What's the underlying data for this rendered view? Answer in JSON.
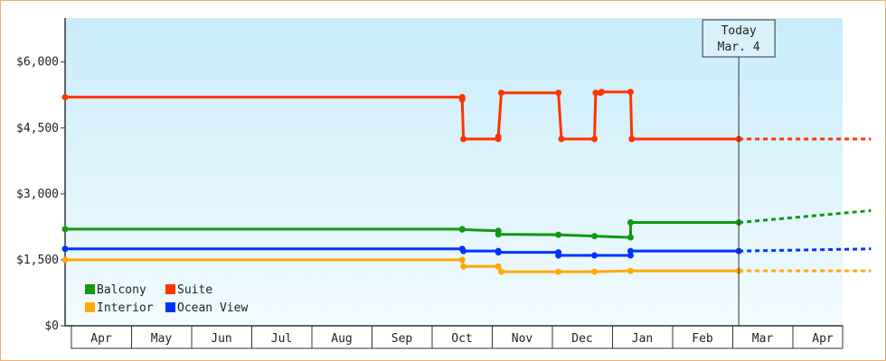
{
  "chart_data": {
    "type": "line",
    "title": "",
    "xlabel": "",
    "ylabel": "",
    "y_ticks": [
      "$0",
      "$1,500",
      "$3,000",
      "$4,500",
      "$6,000"
    ],
    "y_tick_values": [
      0,
      1500,
      3000,
      4500,
      6000
    ],
    "ylim": [
      0,
      7000
    ],
    "x_month_labels": [
      "Apr",
      "May",
      "Jun",
      "Jul",
      "Aug",
      "Sep",
      "Oct",
      "Nov",
      "Dec",
      "Jan",
      "Feb",
      "Mar",
      "Apr"
    ],
    "x_range_months": [
      0,
      13.3
    ],
    "today": {
      "label_line1": "Today",
      "label_line2": "Mar. 4",
      "x": 11.1
    },
    "legend": {
      "position": "bottom-left"
    },
    "series": [
      {
        "name": "Balcony",
        "color": "#119911",
        "points": [
          [
            -0.1,
            2200
          ],
          [
            6.5,
            2200
          ],
          [
            6.5,
            2190
          ],
          [
            7.1,
            2160
          ],
          [
            7.1,
            2080
          ],
          [
            8.1,
            2070
          ],
          [
            8.7,
            2040
          ],
          [
            9.3,
            2010
          ],
          [
            9.3,
            2350
          ],
          [
            11.1,
            2350
          ]
        ],
        "forecast": [
          [
            11.1,
            2350
          ],
          [
            13.3,
            2620
          ]
        ]
      },
      {
        "name": "Suite",
        "color": "#ff3300",
        "points": [
          [
            -0.1,
            5200
          ],
          [
            6.5,
            5200
          ],
          [
            6.5,
            5150
          ],
          [
            6.52,
            4250
          ],
          [
            7.1,
            4250
          ],
          [
            7.1,
            4300
          ],
          [
            7.15,
            5300
          ],
          [
            8.1,
            5300
          ],
          [
            8.15,
            4250
          ],
          [
            8.7,
            4250
          ],
          [
            8.72,
            5300
          ],
          [
            8.8,
            5300
          ],
          [
            8.82,
            5320
          ],
          [
            9.3,
            5320
          ],
          [
            9.32,
            4250
          ],
          [
            11.1,
            4250
          ]
        ],
        "forecast": [
          [
            11.1,
            4250
          ],
          [
            13.3,
            4250
          ]
        ]
      },
      {
        "name": "Interior",
        "color": "#ffaa00",
        "points": [
          [
            -0.1,
            1500
          ],
          [
            6.5,
            1500
          ],
          [
            6.52,
            1350
          ],
          [
            7.1,
            1350
          ],
          [
            7.15,
            1230
          ],
          [
            8.1,
            1230
          ],
          [
            8.7,
            1230
          ],
          [
            9.3,
            1250
          ],
          [
            11.1,
            1250
          ]
        ],
        "forecast": [
          [
            11.1,
            1250
          ],
          [
            13.3,
            1250
          ]
        ]
      },
      {
        "name": "Ocean View",
        "color": "#0033ff",
        "points": [
          [
            -0.1,
            1750
          ],
          [
            6.5,
            1750
          ],
          [
            6.52,
            1700
          ],
          [
            7.1,
            1700
          ],
          [
            7.1,
            1670
          ],
          [
            8.1,
            1670
          ],
          [
            8.1,
            1600
          ],
          [
            8.7,
            1600
          ],
          [
            9.3,
            1600
          ],
          [
            9.3,
            1700
          ],
          [
            11.1,
            1700
          ]
        ],
        "forecast": [
          [
            11.1,
            1700
          ],
          [
            13.3,
            1750
          ]
        ]
      }
    ]
  }
}
